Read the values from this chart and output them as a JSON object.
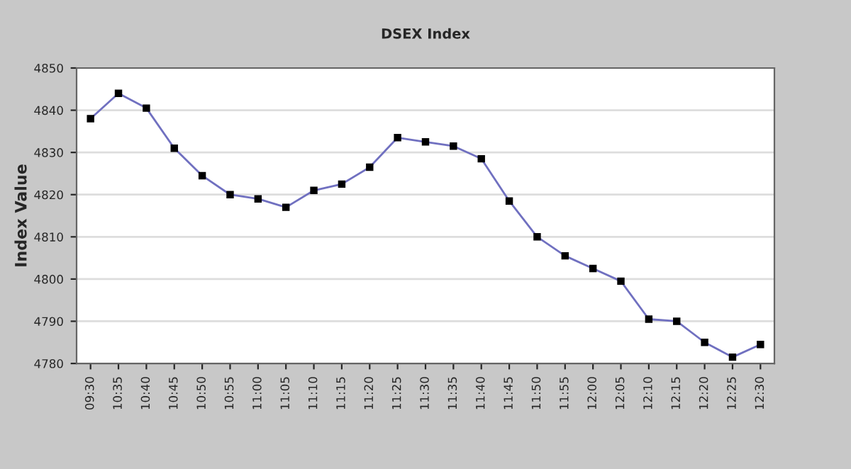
{
  "chart_data": {
    "type": "line",
    "title": "DSEX Index",
    "ylabel": "Index Value",
    "categories": [
      "09:30",
      "10:35",
      "10:40",
      "10:45",
      "10:50",
      "10:55",
      "11:00",
      "11:05",
      "11:10",
      "11:15",
      "11:20",
      "11:25",
      "11:30",
      "11:35",
      "11:40",
      "11:45",
      "11:50",
      "11:55",
      "12:00",
      "12:05",
      "12:10",
      "12:15",
      "12:20",
      "12:25",
      "12:30"
    ],
    "series": [
      {
        "color": "#7070c0",
        "values": [
          4838,
          4844,
          4840.5,
          4831,
          4824.5,
          4820,
          4819,
          4817,
          4821,
          4822.5,
          4826.5,
          4833.5,
          4832.5,
          4831.5,
          4828.5,
          4818.5,
          4810,
          4805.5,
          4802.5,
          4799.5,
          4790.5,
          4790,
          4785,
          4781.5,
          4784.5
        ]
      }
    ],
    "ylim": [
      4780,
      4850
    ],
    "yticks": [
      4780,
      4790,
      4800,
      4810,
      4820,
      4830,
      4840,
      4850
    ],
    "grid": "y",
    "marker": "square",
    "line_style": "solid"
  }
}
